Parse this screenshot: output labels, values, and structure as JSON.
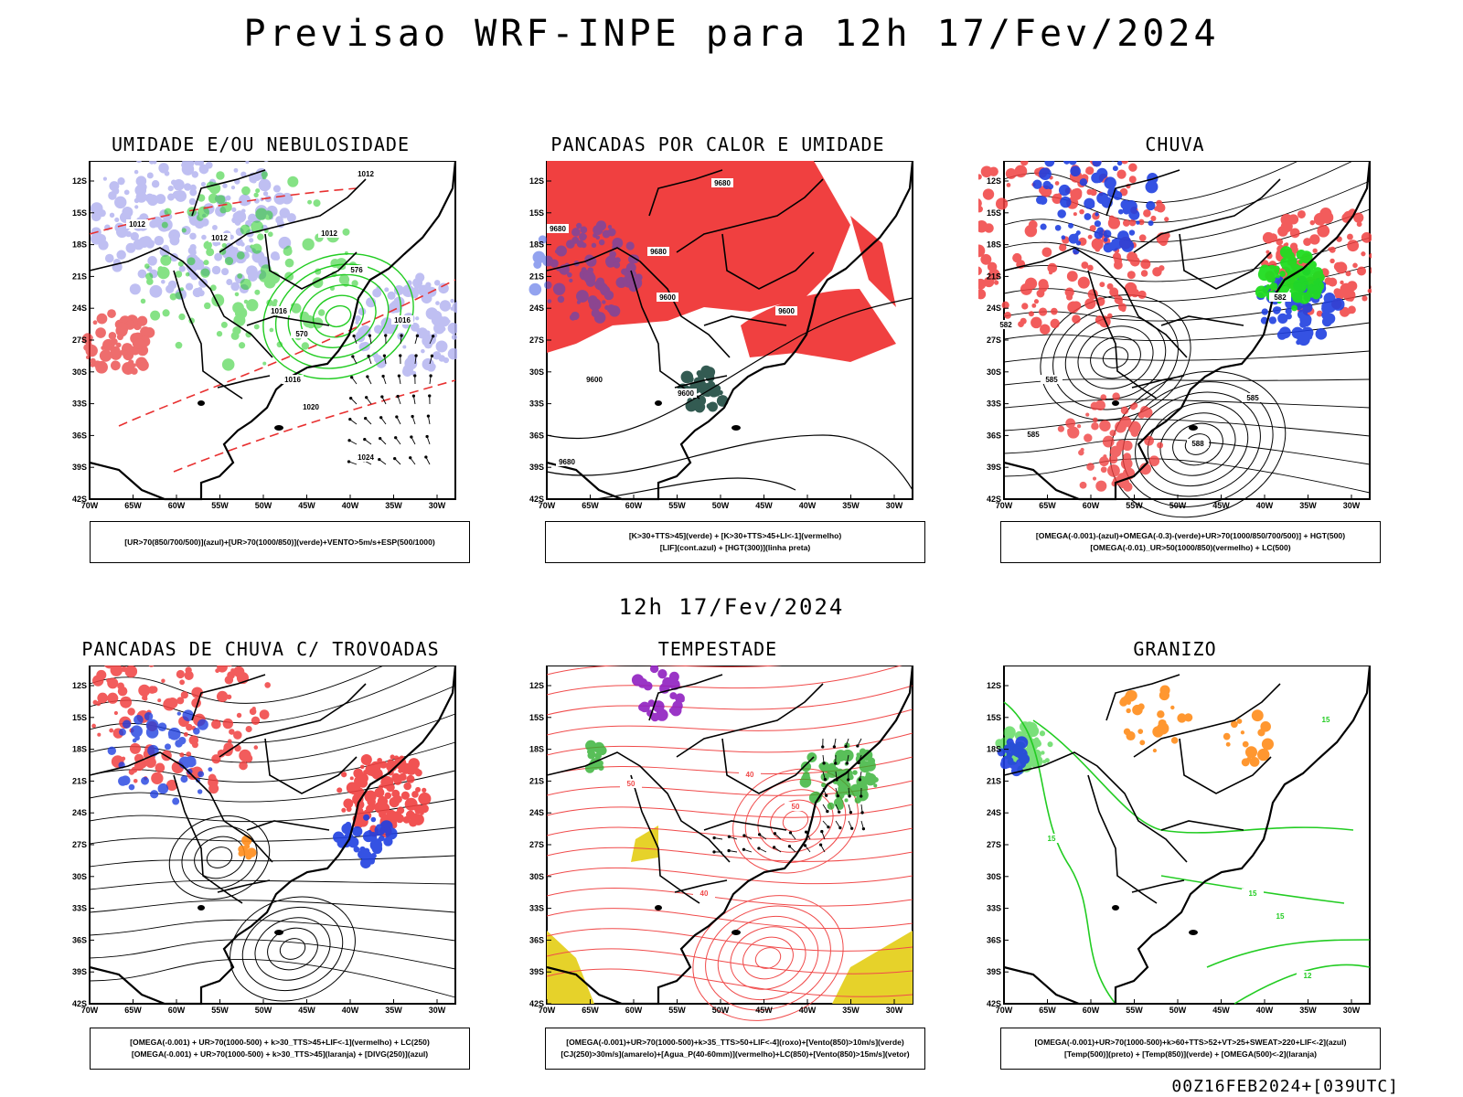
{
  "header": {
    "title": "Previsao WRF-INPE  para 12h 17/Fev/2024",
    "subtitle": "12h 17/Fev/2024",
    "footer": "00Z16FEB2024+[039UTC]"
  },
  "axes": {
    "lat_labels": [
      "12S",
      "15S",
      "18S",
      "21S",
      "24S",
      "27S",
      "30S",
      "33S",
      "36S",
      "39S",
      "42S"
    ],
    "lon_labels": [
      "70W",
      "65W",
      "60W",
      "55W",
      "50W",
      "45W",
      "40W",
      "35W",
      "30W"
    ]
  },
  "panels": [
    {
      "id": "umidade",
      "title": "UMIDADE E/OU NEBULOSIDADE",
      "legend": [
        "[UR>70(850/700/500)](azul)+[UR>70(1000/850)](verde)+VENTO>5m/s+ESP(500/1000)"
      ],
      "contour_labels": [
        "1012",
        "1012",
        "1012",
        "1012",
        "1016",
        "1016",
        "1020",
        "1024",
        "1016",
        "570",
        "576"
      ],
      "colors": {
        "fill": "#b4b4f0",
        "line": "#22cc22",
        "red": "#e83030"
      }
    },
    {
      "id": "pancadas-calor",
      "title": "PANCADAS POR CALOR E UMIDADE",
      "legend": [
        "[K>30+TTS>45](verde) + [K>30+TTS>45+LI<-1](vermelho)",
        "[LIF](cont.azul) + [HGT(300)](linha preta)"
      ],
      "contour_labels": [
        "9680",
        "9680",
        "9680",
        "9600",
        "9600",
        "9600",
        "9680",
        "9600"
      ],
      "colors": {
        "fill": "#f04040",
        "line": "#2a4ae0",
        "dark": "#1e4a40"
      }
    },
    {
      "id": "chuva",
      "title": "CHUVA",
      "legend": [
        "[OMEGA(-0.001)-(azul)+OMEGA(-0.3)-(verde)+UR>70(1000/850/700/500)] + HGT(500)",
        "[OMEGA(-0.01)_UR>50(1000/850)(vermelho) + LC(500)"
      ],
      "contour_labels": [
        "582",
        "585",
        "585",
        "588",
        "585",
        "582"
      ],
      "colors": {
        "red": "#f04040",
        "blue": "#2040e0",
        "green": "#20dd20"
      }
    },
    {
      "id": "pancadas-trovoadas",
      "title": "PANCADAS DE CHUVA C/ TROVOADAS",
      "legend": [
        "[OMEGA(-0.001) + UR>70(1000-500) + k>30_TTS>45+LIF<-1](vermelho) + LC(250)",
        "[OMEGA(-0.001) + UR>70(1000-500) + k>30_TTS>45](laranja) + [DIVG(250)](azul)"
      ],
      "contour_labels": [],
      "colors": {
        "red": "#f04040",
        "blue": "#2040e0",
        "orange": "#ff8c1a"
      }
    },
    {
      "id": "tempestade",
      "title": "TEMPESTADE",
      "legend": [
        "[OMEGA(-0.001)+UR>70(1000-500)+k>35_TTS>50+LIF<-4](roxo)+[Vento(850)>10m/s](verde)",
        "[CJ(250)>30m/s](amarelo)+[Agua_P(40-60mm)](vermelho)+LC(850)+[Vento(850)>15m/s](vetor)"
      ],
      "contour_labels": [
        "50",
        "40",
        "50",
        "40"
      ],
      "colors": {
        "red": "#f04a4a",
        "green": "#30b030",
        "yellow": "#e6d22a",
        "purple": "#9020c0"
      }
    },
    {
      "id": "granizo",
      "title": "GRANIZO",
      "legend": [
        "[OMEGA(-0.001)+UR>70(1000-500)+k>60+TTS>52+VT>25+SWEAT>220+LIF<-2](azul)",
        "[Temp(500)](preto) + [Temp(850)](verde) + [OMEGA(500)<-2](laranja)"
      ],
      "contour_labels": [
        "15",
        "15",
        "15",
        "15",
        "12"
      ],
      "colors": {
        "green": "#22cc22",
        "orange": "#ff8c1a",
        "blue": "#2040e0"
      }
    }
  ]
}
